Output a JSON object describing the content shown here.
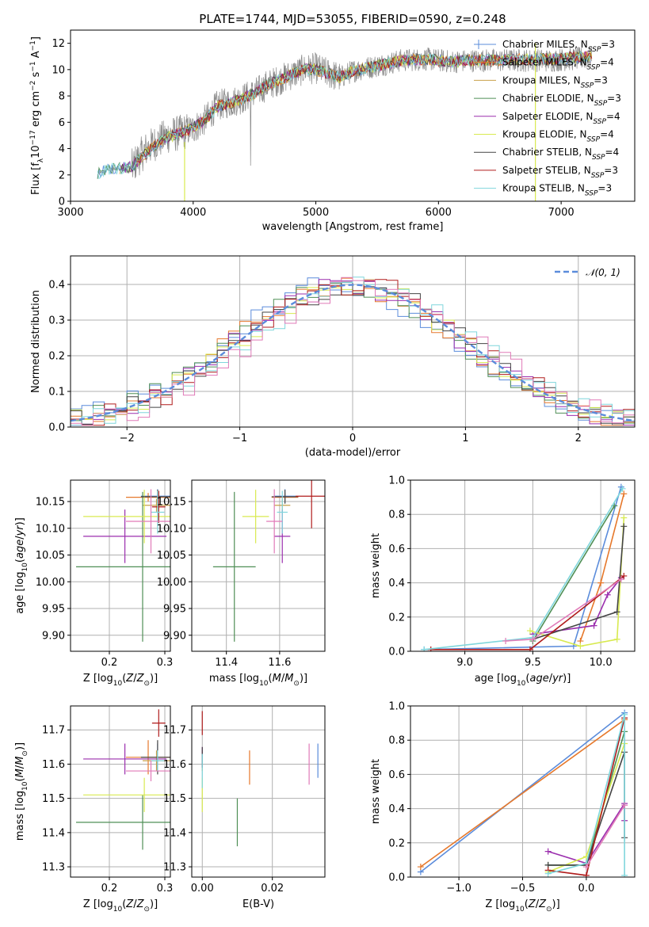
{
  "colors": {
    "Chabrier MILES": "#5b8cdb",
    "Salpeter MILES": "#e6782b",
    "Kroupa MILES": "#c8a04a",
    "Chabrier ELODIE": "#4f8f56",
    "Salpeter ELODIE": "#9b2fae",
    "Kroupa ELODIE": "#d8ea50",
    "Chabrier STELIB": "#444444",
    "Salpeter STELIB": "#b01c1c",
    "Kroupa STELIB": "#7fd6dc",
    "pink": "#e07ab8",
    "grid": "#b0b0b0",
    "gauss": "#5b8cdb"
  },
  "chart_data": [
    {
      "id": "spectrum",
      "type": "line",
      "title": "PLATE=1744, MJD=53055, FIBERID=0590, z=0.248",
      "xlabel": "wavelength [Angstrom, rest frame]",
      "ylabel": "Flux [fλ 10⁻¹⁷ erg cm⁻² s⁻¹ A⁻¹]",
      "xlim": [
        3000,
        7600
      ],
      "ylim": [
        0,
        13
      ],
      "xticks": [
        3000,
        4000,
        5000,
        6000,
        7000
      ],
      "yticks": [
        0,
        2,
        4,
        6,
        8,
        10,
        12
      ],
      "grid": false,
      "legend_position": "top-right",
      "legend": [
        {
          "base": "Chabrier MILES, N",
          "sub": "SSP",
          "tail": "=3"
        },
        {
          "base": "Salpeter MILES, N",
          "sub": "SSP",
          "tail": "=4"
        },
        {
          "base": "Kroupa MILES, N",
          "sub": "SSP",
          "tail": "=3"
        },
        {
          "base": "Chabrier ELODIE, N",
          "sub": "SSP",
          "tail": "=3"
        },
        {
          "base": "Salpeter ELODIE, N",
          "sub": "SSP",
          "tail": "=4"
        },
        {
          "base": "Kroupa ELODIE, N",
          "sub": "SSP",
          "tail": "=4"
        },
        {
          "base": "Chabrier STELIB, N",
          "sub": "SSP",
          "tail": "=4"
        },
        {
          "base": "Salpeter STELIB, N",
          "sub": "SSP",
          "tail": "=3"
        },
        {
          "base": "Kroupa STELIB, N",
          "sub": "SSP",
          "tail": "=3"
        }
      ],
      "data_continuum": [
        [
          3220,
          2.0
        ],
        [
          3300,
          2.4
        ],
        [
          3400,
          2.5
        ],
        [
          3500,
          2.6
        ],
        [
          3600,
          3.8
        ],
        [
          3700,
          4.5
        ],
        [
          3800,
          5.0
        ],
        [
          3900,
          5.2
        ],
        [
          4000,
          5.5
        ],
        [
          4100,
          6.2
        ],
        [
          4200,
          7.3
        ],
        [
          4300,
          7.5
        ],
        [
          4400,
          7.8
        ],
        [
          4500,
          8.2
        ],
        [
          4600,
          8.8
        ],
        [
          4700,
          9.2
        ],
        [
          4800,
          9.6
        ],
        [
          4900,
          10.0
        ],
        [
          5000,
          10.1
        ],
        [
          5100,
          9.7
        ],
        [
          5200,
          9.4
        ],
        [
          5300,
          9.9
        ],
        [
          5500,
          10.3
        ],
        [
          5700,
          10.7
        ],
        [
          5900,
          10.8
        ],
        [
          6100,
          10.6
        ],
        [
          6300,
          10.7
        ],
        [
          6500,
          10.7
        ],
        [
          6700,
          10.7
        ],
        [
          6900,
          10.7
        ],
        [
          7100,
          10.8
        ],
        [
          7250,
          10.9
        ]
      ],
      "model_continuum": [
        [
          3220,
          2.1
        ],
        [
          3300,
          2.45
        ],
        [
          3400,
          2.5
        ],
        [
          3500,
          2.6
        ],
        [
          3600,
          3.5
        ],
        [
          3700,
          4.3
        ],
        [
          3800,
          4.9
        ],
        [
          3900,
          5.2
        ],
        [
          4000,
          5.6
        ],
        [
          4100,
          6.2
        ],
        [
          4200,
          7.2
        ],
        [
          4300,
          7.4
        ],
        [
          4400,
          7.8
        ],
        [
          4500,
          8.2
        ],
        [
          4600,
          8.8
        ],
        [
          4700,
          9.2
        ],
        [
          4800,
          9.6
        ],
        [
          4900,
          10.0
        ],
        [
          5000,
          10.0
        ],
        [
          5100,
          9.7
        ],
        [
          5200,
          9.4
        ],
        [
          5300,
          9.9
        ],
        [
          5500,
          10.3
        ],
        [
          5700,
          10.7
        ],
        [
          5900,
          10.8
        ],
        [
          6100,
          10.6
        ],
        [
          6300,
          10.7
        ],
        [
          6500,
          10.7
        ],
        [
          6700,
          10.8
        ],
        [
          6900,
          10.8
        ],
        [
          7100,
          10.9
        ],
        [
          7250,
          11.0
        ]
      ]
    },
    {
      "id": "residuals",
      "type": "histogram",
      "xlabel": "(data-model)/error",
      "ylabel": "Normed distribution",
      "xlim": [
        -2.5,
        2.5
      ],
      "ylim": [
        0,
        0.48
      ],
      "xticks": [
        -2,
        -1,
        0,
        1,
        2
      ],
      "yticks": [
        0.0,
        0.1,
        0.2,
        0.3,
        0.4
      ],
      "grid": true,
      "legend_position": "top-right",
      "legend": [
        "𝒩(0, 1)"
      ],
      "bin_width": 0.1
    },
    {
      "id": "age_vs_Z",
      "type": "errorbar",
      "xlabel": "Z [log10(Z/Z⊙)]",
      "ylabel": "age [log10(age/yr)]",
      "xlim": [
        0.13,
        0.31
      ],
      "ylim": [
        9.87,
        10.19
      ],
      "xticks": [
        0.2,
        0.3
      ],
      "yticks": [
        9.9,
        9.95,
        10.0,
        10.05,
        10.1,
        10.15
      ],
      "grid": true,
      "points": [
        {
          "model": "Chabrier MILES",
          "x": 0.287,
          "xerr": 0.03,
          "y": 10.16,
          "yerr": 0.013
        },
        {
          "model": "Salpeter MILES",
          "x": 0.27,
          "xerr": 0.04,
          "y": 10.158,
          "yerr": 0.008
        },
        {
          "model": "Kroupa MILES",
          "x": 0.285,
          "xerr": 0.025,
          "y": 10.143,
          "yerr": 0.012
        },
        {
          "model": "Chabrier ELODIE",
          "x": 0.26,
          "xerr": 0.12,
          "y": 10.028,
          "yerr": 0.14
        },
        {
          "model": "Salpeter ELODIE",
          "x": 0.228,
          "xerr": 0.075,
          "y": 10.085,
          "yerr": 0.05
        },
        {
          "model": "Kroupa ELODIE",
          "x": 0.263,
          "xerr": 0.11,
          "y": 10.122,
          "yerr": 0.05
        },
        {
          "model": "Chabrier STELIB",
          "x": 0.287,
          "xerr": 0.03,
          "y": 10.159,
          "yerr": 0.013
        },
        {
          "model": "Salpeter STELIB",
          "x": 0.289,
          "xerr": 0.012,
          "y": 10.14,
          "yerr": 0.03
        },
        {
          "model": "Kroupa STELIB",
          "x": 0.287,
          "xerr": 0.012,
          "y": 10.13,
          "yerr": 0.04
        },
        {
          "model": "pink",
          "x": 0.275,
          "xerr": 0.045,
          "y": 10.113,
          "yerr": 0.06
        }
      ]
    },
    {
      "id": "age_vs_mass",
      "type": "errorbar",
      "xlabel": "mass [log10(M/M⊙)]",
      "xlim": [
        11.27,
        11.77
      ],
      "ylim": [
        9.87,
        10.19
      ],
      "xticks": [
        11.4,
        11.6
      ],
      "yticks": [
        9.9,
        9.95,
        10.0,
        10.05,
        10.1,
        10.15
      ],
      "grid": true,
      "points": [
        {
          "model": "Chabrier MILES",
          "x": 11.62,
          "xerr": 0.04,
          "y": 10.16,
          "yerr": 0.013
        },
        {
          "model": "Salpeter MILES",
          "x": 11.62,
          "xerr": 0.05,
          "y": 10.158,
          "yerr": 0.008
        },
        {
          "model": "Kroupa MILES",
          "x": 11.61,
          "xerr": 0.03,
          "y": 10.143,
          "yerr": 0.012
        },
        {
          "model": "Chabrier ELODIE",
          "x": 11.43,
          "xerr": 0.08,
          "y": 10.028,
          "yerr": 0.14
        },
        {
          "model": "Salpeter ELODIE",
          "x": 11.61,
          "xerr": 0.03,
          "y": 10.085,
          "yerr": 0.05
        },
        {
          "model": "Kroupa ELODIE",
          "x": 11.51,
          "xerr": 0.05,
          "y": 10.122,
          "yerr": 0.05
        },
        {
          "model": "Chabrier STELIB",
          "x": 11.62,
          "xerr": 0.05,
          "y": 10.159,
          "yerr": 0.013
        },
        {
          "model": "Salpeter STELIB",
          "x": 11.72,
          "xerr": 0.06,
          "y": 10.16,
          "yerr": 0.06
        },
        {
          "model": "Kroupa STELIB",
          "x": 11.61,
          "xerr": 0.02,
          "y": 10.13,
          "yerr": 0.04
        },
        {
          "model": "pink",
          "x": 11.58,
          "xerr": 0.03,
          "y": 10.113,
          "yerr": 0.06
        }
      ]
    },
    {
      "id": "weight_vs_age",
      "type": "line",
      "xlabel": "age [log10(age/yr)]",
      "ylabel": "mass weight",
      "xlim": [
        8.6,
        10.25
      ],
      "ylim": [
        0,
        1.0
      ],
      "xticks": [
        9.0,
        9.5,
        10.0
      ],
      "yticks": [
        0.0,
        0.2,
        0.4,
        0.6,
        0.8,
        1.0
      ],
      "grid": true,
      "series": [
        {
          "model": "Chabrier MILES",
          "points": [
            [
              8.7,
              0.01
            ],
            [
              9.8,
              0.03
            ],
            [
              10.15,
              0.96
            ]
          ]
        },
        {
          "model": "Salpeter MILES",
          "points": [
            [
              9.85,
              0.06
            ],
            [
              10.0,
              0.4
            ],
            [
              10.17,
              0.92
            ]
          ]
        },
        {
          "model": "Chabrier ELODIE",
          "points": [
            [
              9.5,
              0.06
            ],
            [
              10.1,
              0.85
            ]
          ]
        },
        {
          "model": "Salpeter ELODIE",
          "points": [
            [
              9.5,
              0.1
            ],
            [
              9.95,
              0.15
            ],
            [
              10.05,
              0.33
            ],
            [
              10.15,
              0.43
            ]
          ]
        },
        {
          "model": "Kroupa ELODIE",
          "points": [
            [
              9.48,
              0.12
            ],
            [
              9.85,
              0.03
            ],
            [
              10.12,
              0.07
            ],
            [
              10.17,
              0.78
            ]
          ]
        },
        {
          "model": "Chabrier STELIB",
          "points": [
            [
              9.5,
              0.07
            ],
            [
              10.12,
              0.23
            ],
            [
              10.17,
              0.73
            ]
          ]
        },
        {
          "model": "Salpeter STELIB",
          "points": [
            [
              8.75,
              0.01
            ],
            [
              9.48,
              0.01
            ],
            [
              10.17,
              0.44
            ]
          ]
        },
        {
          "model": "Kroupa STELIB",
          "points": [
            [
              8.7,
              0.01
            ],
            [
              9.5,
              0.08
            ],
            [
              10.16,
              0.95
            ]
          ]
        },
        {
          "model": "pink",
          "points": [
            [
              9.3,
              0.06
            ],
            [
              9.5,
              0.07
            ],
            [
              10.15,
              0.42
            ]
          ]
        }
      ]
    },
    {
      "id": "mass_vs_Z",
      "type": "errorbar",
      "xlabel": "Z [log10(Z/Z⊙)]",
      "ylabel": "mass [log10(M/M⊙)]",
      "xlim": [
        0.13,
        0.31
      ],
      "ylim": [
        11.27,
        11.77
      ],
      "xticks": [
        0.2,
        0.3
      ],
      "yticks": [
        11.3,
        11.4,
        11.5,
        11.6,
        11.7
      ],
      "grid": true,
      "points": [
        {
          "model": "Chabrier MILES",
          "x": 0.287,
          "xerr": 0.03,
          "y": 11.62,
          "yerr": 0.04
        },
        {
          "model": "Salpeter MILES",
          "x": 0.27,
          "xerr": 0.04,
          "y": 11.62,
          "yerr": 0.05
        },
        {
          "model": "Kroupa MILES",
          "x": 0.285,
          "xerr": 0.025,
          "y": 11.61,
          "yerr": 0.03
        },
        {
          "model": "Chabrier ELODIE",
          "x": 0.26,
          "xerr": 0.12,
          "y": 11.43,
          "yerr": 0.08
        },
        {
          "model": "Salpeter ELODIE",
          "x": 0.228,
          "xerr": 0.075,
          "y": 11.615,
          "yerr": 0.045
        },
        {
          "model": "Kroupa ELODIE",
          "x": 0.263,
          "xerr": 0.11,
          "y": 11.51,
          "yerr": 0.05
        },
        {
          "model": "Chabrier STELIB",
          "x": 0.287,
          "xerr": 0.03,
          "y": 11.62,
          "yerr": 0.05
        },
        {
          "model": "Salpeter STELIB",
          "x": 0.289,
          "xerr": 0.012,
          "y": 11.72,
          "yerr": 0.04
        },
        {
          "model": "Kroupa STELIB",
          "x": 0.287,
          "xerr": 0.012,
          "y": 11.61,
          "yerr": 0.03
        },
        {
          "model": "pink",
          "x": 0.275,
          "xerr": 0.045,
          "y": 11.58,
          "yerr": 0.03
        }
      ]
    },
    {
      "id": "mass_vs_EBV",
      "type": "errorbar",
      "xlabel": "E(B-V)",
      "xlim": [
        -0.003,
        0.035
      ],
      "ylim": [
        11.27,
        11.77
      ],
      "xticks": [
        0.0,
        0.02
      ],
      "yticks": [
        11.3,
        11.4,
        11.5,
        11.6,
        11.7
      ],
      "grid": true,
      "points": [
        {
          "model": "Chabrier MILES",
          "x": 0.033,
          "y": 11.61,
          "yerr": 0.05
        },
        {
          "model": "Salpeter MILES",
          "x": 0.0135,
          "y": 11.59,
          "yerr": 0.05
        },
        {
          "model": "Kroupa MILES",
          "x": 0.0,
          "y": 11.61,
          "yerr": 0.03
        },
        {
          "model": "Chabrier ELODIE",
          "x": 0.01,
          "y": 11.43,
          "yerr": 0.07
        },
        {
          "model": "Salpeter ELODIE",
          "x": 0.0,
          "y": 11.62,
          "yerr": 0.03
        },
        {
          "model": "Kroupa ELODIE",
          "x": 0.0,
          "y": 11.51,
          "yerr": 0.05
        },
        {
          "model": "Chabrier STELIB",
          "x": 0.0,
          "y": 11.62,
          "yerr": 0.03
        },
        {
          "model": "Salpeter STELIB",
          "x": 0.0,
          "y": 11.72,
          "yerr": 0.035
        },
        {
          "model": "Kroupa STELIB",
          "x": 0.0,
          "y": 11.58,
          "yerr": 0.05
        },
        {
          "model": "pink",
          "x": 0.0305,
          "y": 11.6,
          "yerr": 0.06
        }
      ]
    },
    {
      "id": "weight_vs_Z",
      "type": "line",
      "xlabel": "Z [log10(Z/Z⊙)]",
      "ylabel": "mass weight",
      "xlim": [
        -1.38,
        0.38
      ],
      "ylim": [
        0,
        1.0
      ],
      "xticks": [
        -1.0,
        -0.5,
        0.0
      ],
      "yticks": [
        0.0,
        0.2,
        0.4,
        0.6,
        0.8,
        1.0
      ],
      "grid": true,
      "series": [
        {
          "model": "Chabrier MILES",
          "points": [
            [
              -1.3,
              0.03
            ],
            [
              0.3,
              0.96
            ]
          ]
        },
        {
          "model": "Salpeter MILES",
          "points": [
            [
              -1.3,
              0.06
            ],
            [
              0.3,
              0.92
            ]
          ]
        },
        {
          "model": "Chabrier ELODIE",
          "points": [
            [
              -0.3,
              0.07
            ],
            [
              0.0,
              0.07
            ],
            [
              0.3,
              0.85
            ]
          ]
        },
        {
          "model": "Salpeter ELODIE",
          "points": [
            [
              -0.3,
              0.15
            ],
            [
              0.0,
              0.08
            ],
            [
              0.3,
              0.43
            ],
            [
              0.3,
              0.33
            ]
          ]
        },
        {
          "model": "Kroupa ELODIE",
          "points": [
            [
              -0.3,
              0.03
            ],
            [
              0.0,
              0.12
            ],
            [
              0.3,
              0.78
            ]
          ]
        },
        {
          "model": "Chabrier STELIB",
          "points": [
            [
              -0.3,
              0.07
            ],
            [
              0.0,
              0.07
            ],
            [
              0.3,
              0.73
            ],
            [
              0.3,
              0.23
            ]
          ]
        },
        {
          "model": "Salpeter STELIB",
          "points": [
            [
              -0.3,
              0.04
            ],
            [
              0.0,
              0.01
            ],
            [
              0.3,
              0.93
            ]
          ]
        },
        {
          "model": "Kroupa STELIB",
          "points": [
            [
              -0.3,
              0.02
            ],
            [
              0.0,
              0.08
            ],
            [
              0.3,
              0.95
            ],
            [
              0.3,
              0.01
            ]
          ]
        },
        {
          "model": "pink",
          "points": [
            [
              0.0,
              0.06
            ],
            [
              0.3,
              0.42
            ]
          ]
        }
      ]
    }
  ]
}
